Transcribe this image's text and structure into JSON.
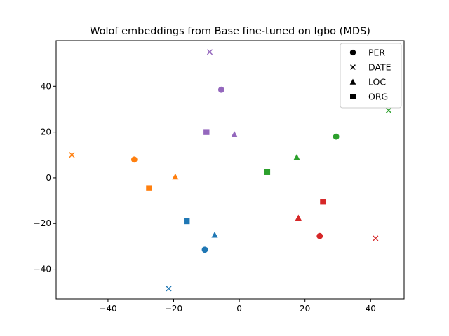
{
  "chart_data": {
    "type": "scatter",
    "title": "Wolof embeddings from Base fine-tuned on Igbo (MDS)",
    "xlabel": "",
    "ylabel": "",
    "xlim": [
      -55.8,
      50.2
    ],
    "ylim": [
      -53,
      60
    ],
    "xticks": [
      -40,
      -20,
      0,
      20,
      40
    ],
    "yticks": [
      -40,
      -20,
      0,
      20,
      40
    ],
    "grid": false,
    "legend": {
      "position": "top-right",
      "entries": [
        {
          "label": "PER",
          "marker": "circle"
        },
        {
          "label": "DATE",
          "marker": "x"
        },
        {
          "label": "LOC",
          "marker": "triangle"
        },
        {
          "label": "ORG",
          "marker": "square"
        }
      ]
    },
    "groups": [
      {
        "color": "#1f77b4",
        "points": [
          {
            "marker": "circle",
            "x": -10.5,
            "y": -31.5
          },
          {
            "marker": "x",
            "x": -21.5,
            "y": -48.5
          },
          {
            "marker": "triangle",
            "x": -7.5,
            "y": -25
          },
          {
            "marker": "square",
            "x": -16,
            "y": -19
          }
        ]
      },
      {
        "color": "#ff7f0e",
        "points": [
          {
            "marker": "circle",
            "x": -32,
            "y": 8
          },
          {
            "marker": "x",
            "x": -51,
            "y": 10
          },
          {
            "marker": "triangle",
            "x": -19.5,
            "y": 0.5
          },
          {
            "marker": "square",
            "x": -27.5,
            "y": -4.5
          }
        ]
      },
      {
        "color": "#2ca02c",
        "points": [
          {
            "marker": "circle",
            "x": 29.5,
            "y": 18
          },
          {
            "marker": "x",
            "x": 45.5,
            "y": 29.5
          },
          {
            "marker": "triangle",
            "x": 17.5,
            "y": 9
          },
          {
            "marker": "square",
            "x": 8.5,
            "y": 2.5
          }
        ]
      },
      {
        "color": "#d62728",
        "points": [
          {
            "marker": "circle",
            "x": 24.5,
            "y": -25.5
          },
          {
            "marker": "x",
            "x": 41.5,
            "y": -26.5
          },
          {
            "marker": "triangle",
            "x": 18,
            "y": -17.5
          },
          {
            "marker": "square",
            "x": 25.5,
            "y": -10.5
          }
        ]
      },
      {
        "color": "#9467bd",
        "points": [
          {
            "marker": "circle",
            "x": -5.5,
            "y": 38.5
          },
          {
            "marker": "x",
            "x": -9,
            "y": 55
          },
          {
            "marker": "triangle",
            "x": -1.5,
            "y": 19
          },
          {
            "marker": "square",
            "x": -10,
            "y": 20
          }
        ]
      }
    ]
  }
}
